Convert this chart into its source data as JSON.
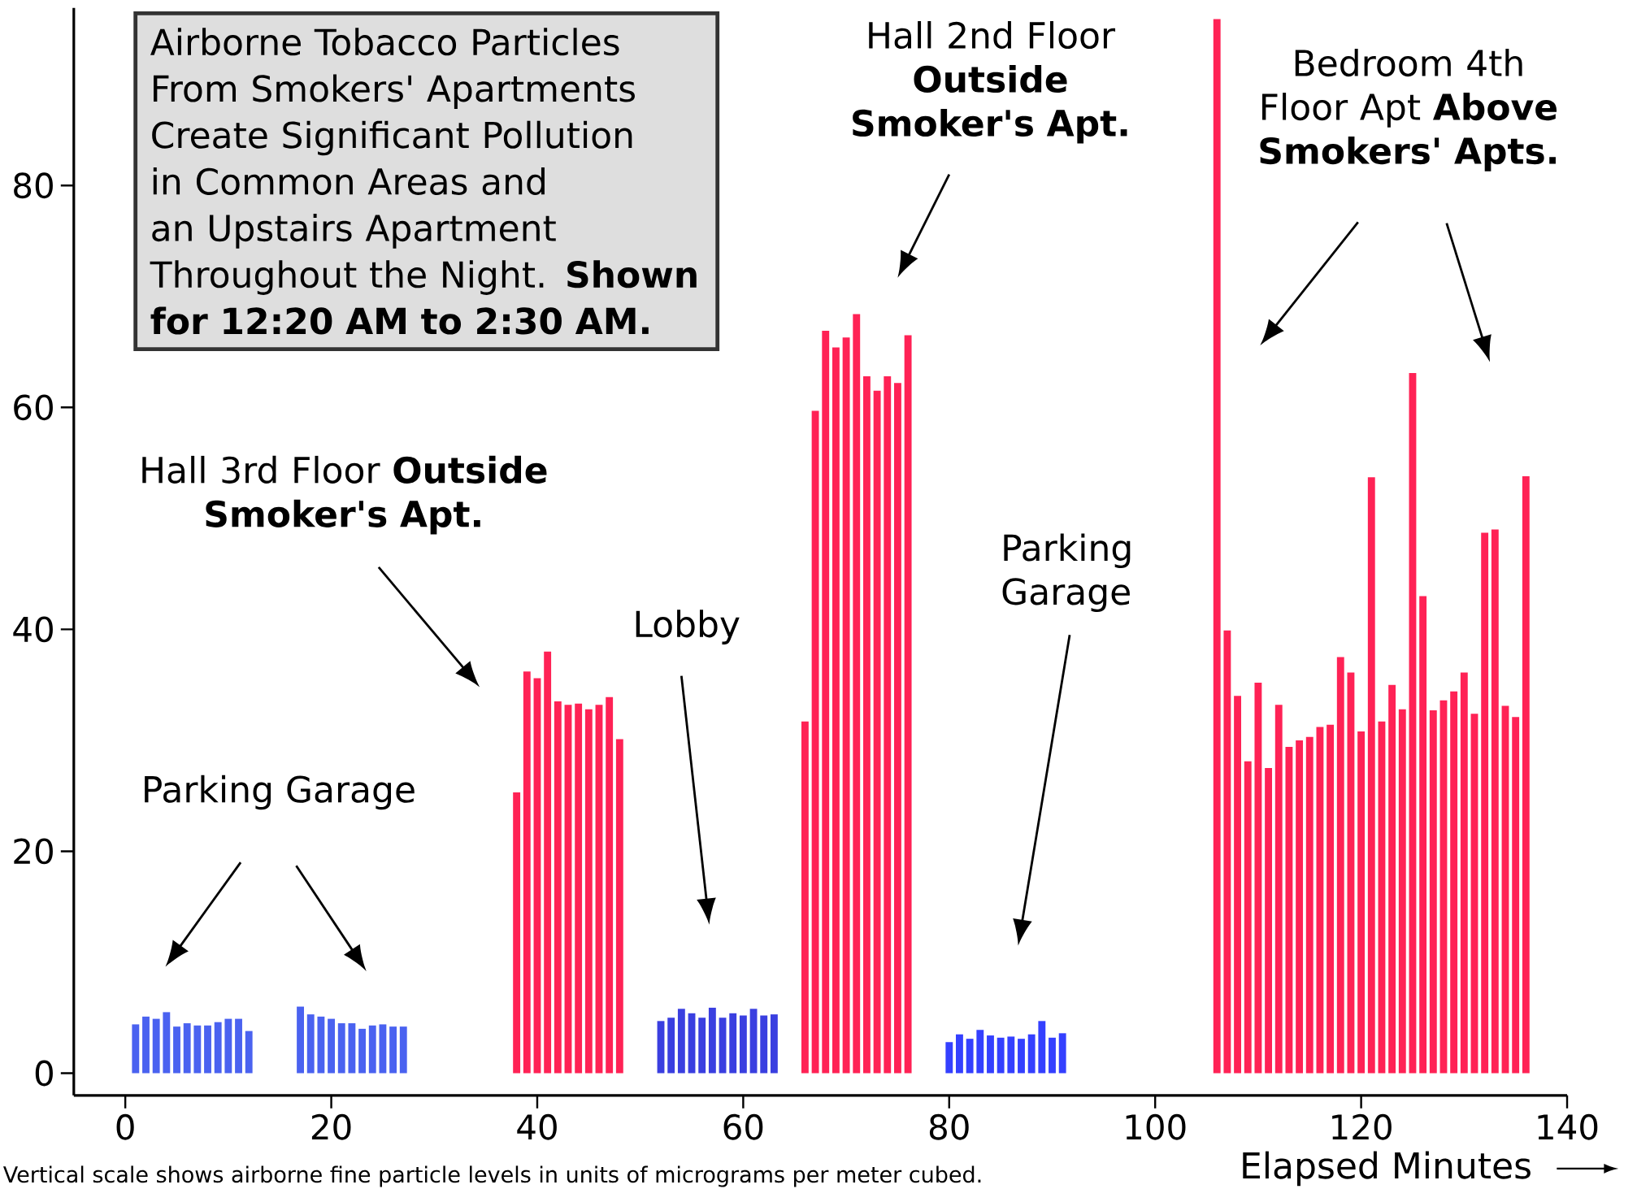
{
  "chart_data": {
    "type": "bar",
    "title": "Airborne Tobacco Particles From Smokers' Apartments Create Significant Pollution in Common Areas and an Upstairs Apartment Throughout the Night. **Shown for 12:20 AM to 2:30 AM.**",
    "xlabel": "Elapsed Minutes",
    "x": [
      1,
      2,
      3,
      4,
      5,
      6,
      7,
      8,
      9,
      10,
      11,
      12,
      17,
      18,
      19,
      20,
      21,
      22,
      23,
      24,
      25,
      26,
      27,
      38,
      39,
      40,
      41,
      42,
      43,
      44,
      45,
      46,
      47,
      48,
      52,
      53,
      54,
      55,
      56,
      57,
      58,
      59,
      60,
      61,
      62,
      63,
      66,
      67,
      68,
      69,
      70,
      71,
      72,
      73,
      74,
      75,
      76,
      80,
      81,
      82,
      83,
      84,
      85,
      86,
      87,
      88,
      89,
      90,
      91,
      106,
      107,
      108,
      109,
      110,
      111,
      112,
      113,
      114,
      115,
      116,
      117,
      118,
      119,
      120,
      121,
      122,
      123,
      124,
      125,
      126,
      127,
      128,
      129,
      130,
      131,
      132,
      133,
      134,
      135,
      136
    ],
    "values": [
      4.4,
      5.1,
      4.9,
      5.5,
      4.2,
      4.5,
      4.3,
      4.3,
      4.6,
      4.9,
      4.9,
      3.8,
      6.0,
      5.3,
      5.1,
      4.9,
      4.5,
      4.5,
      4.0,
      4.3,
      4.4,
      4.2,
      4.2,
      25.3,
      36.2,
      35.6,
      38.0,
      33.5,
      33.2,
      33.3,
      32.8,
      33.2,
      33.9,
      30.1,
      4.7,
      5.0,
      5.8,
      5.4,
      5.0,
      5.9,
      5.0,
      5.4,
      5.2,
      5.8,
      5.2,
      5.3,
      31.7,
      59.7,
      66.9,
      65.4,
      66.3,
      68.4,
      62.8,
      61.5,
      62.8,
      62.2,
      66.5,
      2.8,
      3.5,
      3.1,
      3.9,
      3.4,
      3.2,
      3.3,
      3.1,
      3.5,
      4.7,
      3.2,
      3.6,
      95,
      39.9,
      34.0,
      28.1,
      35.2,
      27.5,
      33.2,
      29.4,
      30.0,
      30.3,
      31.2,
      31.4,
      37.5,
      36.1,
      30.8,
      53.7,
      31.7,
      35.0,
      32.8,
      63.1,
      43.0,
      32.7,
      33.6,
      34.4,
      36.1,
      32.4,
      48.7,
      49.0,
      33.1,
      32.1,
      53.8
    ],
    "colors": [
      "#4a62f0",
      "#4a62f0",
      "#4a62f0",
      "#4a62f0",
      "#4a62f0",
      "#4a62f0",
      "#4a62f0",
      "#4a62f0",
      "#4a62f0",
      "#4a62f0",
      "#4a62f0",
      "#4a62f0",
      "#4a62f0",
      "#4a62f0",
      "#4a62f0",
      "#4a62f0",
      "#4a62f0",
      "#4a62f0",
      "#4a62f0",
      "#4a62f0",
      "#4a62f0",
      "#4a62f0",
      "#4a62f0",
      "#ff2255",
      "#ff2255",
      "#ff2255",
      "#ff2255",
      "#ff2255",
      "#ff2255",
      "#ff2255",
      "#ff2255",
      "#ff2255",
      "#ff2255",
      "#ff2255",
      "#3a3fe0",
      "#3a3fe0",
      "#3a3fe0",
      "#3a3fe0",
      "#3a3fe0",
      "#3a3fe0",
      "#3a3fe0",
      "#3a3fe0",
      "#3a3fe0",
      "#3a3fe0",
      "#3a3fe0",
      "#3a3fe0",
      "#ff2255",
      "#ff2255",
      "#ff2255",
      "#ff2255",
      "#ff2255",
      "#ff2255",
      "#ff2255",
      "#ff2255",
      "#ff2255",
      "#ff2255",
      "#ff2255",
      "#3440ff",
      "#3440ff",
      "#3440ff",
      "#3440ff",
      "#3440ff",
      "#3440ff",
      "#3440ff",
      "#3440ff",
      "#3440ff",
      "#3440ff",
      "#3440ff",
      "#3440ff",
      "#ff2255",
      "#ff2255",
      "#ff2255",
      "#ff2255",
      "#ff2255",
      "#ff2255",
      "#ff2255",
      "#ff2255",
      "#ff2255",
      "#ff2255",
      "#ff2255",
      "#ff2255",
      "#ff2255",
      "#ff2255",
      "#ff2255",
      "#ff2255",
      "#ff2255",
      "#ff2255",
      "#ff2255",
      "#ff2255",
      "#ff2255",
      "#ff2255",
      "#ff2255",
      "#ff2255",
      "#ff2255",
      "#ff2255",
      "#ff2255",
      "#ff2255",
      "#ff2255",
      "#ff2255",
      "#ff2255"
    ],
    "xlim": [
      -5,
      140
    ],
    "ylim": [
      -2,
      96
    ],
    "xticks": [
      0,
      20,
      40,
      60,
      80,
      100,
      120,
      140
    ],
    "yticks": [
      0,
      20,
      40,
      60,
      80
    ],
    "annotations": [
      "Parking Garage",
      "Hall 3rd Floor **Outside Smoker's Apt.**",
      "Lobby",
      "Hall 2nd Floor **Outside Smoker's Apt.**",
      "Parking Garage",
      "Bedroom 4th Floor Apt **Above Smokers' Apts.**",
      "Vertical scale shows airborne fine particle levels in units of micrograms per meter cubed."
    ]
  }
}
